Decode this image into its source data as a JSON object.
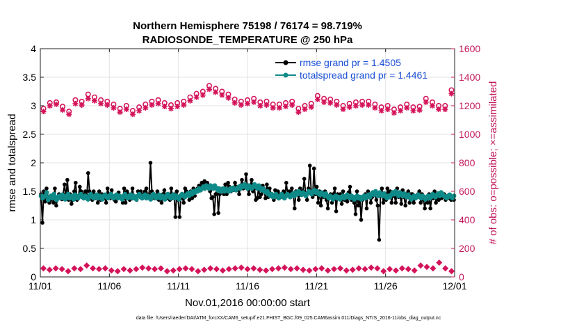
{
  "chart_data": {
    "type": "line",
    "title_lines": [
      "Northern Hemisphere 75198 / 76174 = 98.719%",
      "RADIOSONDE_TEMPERATURE @ 250 hPa"
    ],
    "xlabel": "Nov.01,2016 00:00:00 start",
    "ylabel_left": "rmse and totalspread",
    "ylabel_right": "# of obs: o=possible; ×=assimilated",
    "footer": "data file: /Users/raeder/DAI/ATM_forcXX/CAM6_setup/f.e21.FHIST_BGC.f09_025.CAM6assim.011/Diags_NTrS_2016-11/obs_diag_output.nc",
    "xlim": [
      0,
      30
    ],
    "x_ticks": [
      0,
      5,
      10,
      15,
      20,
      25,
      30
    ],
    "x_tick_labels": [
      "11/01",
      "11/06",
      "11/11",
      "11/16",
      "11/21",
      "11/26",
      "12/01"
    ],
    "ylim_left": [
      0,
      4
    ],
    "y_ticks_left": [
      "0",
      "0.5",
      "1",
      "1.5",
      "2",
      "2.5",
      "3",
      "3.5",
      "4"
    ],
    "ylim_right": [
      0,
      1600
    ],
    "y_ticks_right": [
      "0",
      "200",
      "400",
      "600",
      "800",
      "1000",
      "1200",
      "1400",
      "1600"
    ],
    "colors": {
      "rmse": "#000000",
      "spread": "#0e8a88",
      "obs": "#d4145a",
      "right_axis": "#c2185b"
    },
    "legend": [
      {
        "label": "rmse grand pr = 1.4505",
        "series": "rmse"
      },
      {
        "label": "totalspread grand pr = 1.4461",
        "series": "spread"
      }
    ],
    "series": [
      {
        "name": "rmse",
        "axis": "left",
        "values": [
          1.45,
          0.95,
          1.5,
          1.32,
          1.55,
          1.4,
          1.3,
          1.35,
          1.42,
          1.3,
          1.55,
          1.25,
          1.38,
          1.45,
          1.38,
          1.36,
          1.45,
          1.62,
          1.38,
          1.7,
          1.35,
          1.45,
          1.28,
          1.35,
          1.5,
          1.65,
          1.35,
          1.42,
          1.58,
          1.5,
          1.4,
          1.45,
          1.5,
          1.38,
          1.82,
          1.5,
          1.4,
          1.35,
          1.5,
          1.38,
          1.42,
          1.3,
          1.5,
          1.35,
          1.45,
          1.4,
          1.38,
          1.3,
          1.55,
          1.45,
          1.38,
          1.52,
          1.4,
          1.35,
          1.32,
          1.42,
          1.48,
          1.4,
          1.4,
          1.3,
          1.55,
          1.3,
          1.5,
          1.45,
          1.35,
          1.42,
          1.55,
          1.38,
          1.4,
          1.35,
          1.5,
          1.42,
          1.5,
          1.38,
          1.45,
          1.5,
          1.55,
          1.4,
          1.45,
          2.0,
          1.5,
          1.45,
          1.38,
          1.42,
          1.5,
          1.35,
          1.42,
          1.3,
          1.45,
          1.52,
          1.4,
          1.38,
          1.45,
          1.35,
          1.55,
          1.38,
          1.45,
          1.05,
          1.5,
          1.35,
          1.05,
          1.42,
          1.38,
          1.3,
          1.55,
          1.5,
          1.45,
          1.35,
          1.5,
          1.38,
          1.55,
          1.42,
          1.5,
          1.55,
          1.6,
          1.58,
          1.65,
          1.65,
          1.68,
          1.65,
          1.65,
          1.55,
          1.5,
          1.38,
          1.4,
          1.1,
          1.45,
          1.55,
          1.12,
          1.45,
          1.52,
          1.55,
          1.45,
          1.62,
          1.45,
          1.65,
          1.58,
          1.5,
          1.55,
          1.52,
          1.65,
          1.58,
          1.55,
          1.45,
          1.6,
          1.7,
          1.55,
          1.6,
          1.8,
          1.55,
          1.45,
          1.6,
          1.7,
          1.5,
          1.55,
          1.35,
          1.38,
          1.55,
          1.4,
          1.45,
          1.6,
          1.5,
          1.38,
          1.62,
          1.4,
          1.55,
          1.45,
          1.42,
          1.35,
          1.52,
          1.4,
          1.5,
          1.45,
          1.4,
          1.45,
          1.5,
          1.4,
          1.65,
          1.45,
          1.5,
          1.4,
          1.55,
          1.45,
          1.2,
          1.5,
          1.45,
          1.35,
          1.55,
          1.5,
          1.5,
          1.72,
          1.45,
          1.35,
          1.55,
          1.95,
          1.5,
          1.4,
          1.9,
          1.45,
          1.58,
          1.3,
          1.5,
          1.25,
          1.45,
          1.4,
          1.5,
          1.35,
          1.2,
          1.42,
          1.45,
          1.3,
          1.45,
          1.55,
          1.15,
          1.45,
          1.4,
          1.45,
          1.28,
          1.5,
          1.35,
          1.4,
          1.32,
          1.48,
          1.58,
          1.35,
          1.4,
          1.3,
          1.1,
          1.5,
          1.25,
          1.4,
          1.0,
          1.35,
          1.38,
          1.45,
          1.2,
          1.5,
          1.42,
          1.3,
          1.4,
          1.45,
          1.45,
          1.35,
          1.25,
          0.65,
          1.45,
          1.55,
          1.3,
          1.45,
          1.35,
          1.55,
          1.45,
          1.5,
          1.3,
          1.45,
          1.42,
          1.3,
          1.55,
          1.4,
          1.45,
          1.28,
          1.52,
          1.4,
          1.25,
          1.45,
          1.5,
          1.3,
          1.45,
          1.45,
          1.3,
          1.38,
          1.42,
          1.45,
          1.5,
          1.3,
          1.45,
          1.35,
          1.2,
          1.4,
          1.3,
          1.45,
          1.2,
          1.4,
          1.38,
          1.5,
          1.3,
          1.45,
          1.35,
          1.4,
          1.38,
          1.4,
          1.45,
          1.35,
          1.4,
          1.38,
          1.4,
          1.35,
          1.4,
          1.35
        ]
      },
      {
        "name": "totalspread",
        "axis": "left",
        "values": [
          1.42,
          1.38,
          1.4,
          1.42,
          1.48,
          1.35,
          1.4,
          1.42,
          1.38,
          1.45,
          1.4,
          1.35,
          1.4,
          1.42,
          1.38,
          1.44,
          1.4,
          1.36,
          1.42,
          1.45,
          1.38,
          1.4,
          1.42,
          1.36,
          1.44,
          1.4,
          1.38,
          1.42,
          1.45,
          1.4,
          1.38,
          1.42,
          1.4,
          1.36,
          1.42,
          1.45,
          1.4,
          1.38,
          1.42,
          1.44,
          1.38,
          1.42,
          1.4,
          1.36,
          1.42,
          1.44,
          1.4,
          1.38,
          1.42,
          1.45,
          1.4,
          1.38,
          1.42,
          1.44,
          1.38,
          1.42,
          1.4,
          1.36,
          1.42,
          1.45,
          1.4,
          1.38,
          1.42,
          1.44,
          1.38,
          1.42,
          1.4,
          1.36,
          1.42,
          1.45,
          1.4,
          1.38,
          1.42,
          1.44,
          1.38,
          1.42,
          1.4,
          1.36,
          1.42,
          1.45,
          1.4,
          1.38,
          1.42,
          1.44,
          1.38,
          1.42,
          1.4,
          1.36,
          1.42,
          1.45,
          1.4,
          1.38,
          1.42,
          1.44,
          1.38,
          1.42,
          1.4,
          1.36,
          1.42,
          1.45,
          1.42,
          1.4,
          1.44,
          1.46,
          1.42,
          1.48,
          1.45,
          1.5,
          1.48,
          1.52,
          1.5,
          1.55,
          1.52,
          1.55,
          1.58,
          1.55,
          1.6,
          1.58,
          1.55,
          1.6,
          1.58,
          1.55,
          1.6,
          1.56,
          1.52,
          1.55,
          1.5,
          1.52,
          1.55,
          1.5,
          1.54,
          1.52,
          1.5,
          1.55,
          1.52,
          1.56,
          1.54,
          1.52,
          1.56,
          1.58,
          1.55,
          1.6,
          1.58,
          1.62,
          1.58,
          1.55,
          1.6,
          1.58,
          1.55,
          1.58,
          1.62,
          1.58,
          1.55,
          1.6,
          1.56,
          1.52,
          1.55,
          1.5,
          1.48,
          1.5,
          1.45,
          1.42,
          1.45,
          1.4,
          1.42,
          1.45,
          1.4,
          1.38,
          1.42,
          1.45,
          1.4,
          1.38,
          1.42,
          1.45,
          1.42,
          1.4,
          1.44,
          1.46,
          1.42,
          1.48,
          1.45,
          1.5,
          1.46,
          1.44,
          1.48,
          1.45,
          1.42,
          1.46,
          1.5,
          1.48,
          1.45,
          1.5,
          1.52,
          1.48,
          1.5,
          1.46,
          1.44,
          1.48,
          1.45,
          1.42,
          1.46,
          1.42,
          1.38,
          1.42,
          1.4,
          1.36,
          1.4,
          1.42,
          1.38,
          1.4,
          1.36,
          1.4,
          1.42,
          1.38,
          1.4,
          1.44,
          1.4,
          1.38,
          1.42,
          1.4,
          1.36,
          1.4,
          1.42,
          1.38,
          1.4,
          1.36,
          1.4,
          1.42,
          1.38,
          1.42,
          1.44,
          1.4,
          1.45,
          1.48,
          1.44,
          1.5,
          1.46,
          1.42,
          1.48,
          1.45,
          1.42,
          1.46,
          1.42,
          1.38,
          1.42,
          1.4,
          1.44,
          1.48,
          1.45,
          1.5,
          1.46,
          1.42,
          1.48,
          1.45,
          1.42,
          1.46,
          1.42,
          1.4,
          1.44,
          1.4,
          1.36,
          1.4,
          1.42,
          1.38,
          1.4,
          1.44,
          1.4,
          1.38,
          1.42,
          1.4,
          1.36,
          1.4,
          1.42,
          1.38,
          1.4,
          1.45,
          1.42,
          1.4,
          1.44,
          1.46,
          1.42,
          1.48,
          1.45,
          1.42,
          1.4,
          1.38,
          1.42,
          1.44,
          1.4,
          1.38,
          1.42
        ]
      },
      {
        "name": "obs_possible",
        "axis": "right",
        "values": [
          1180,
          1220,
          1225,
          1195,
          1160,
          1240,
          1230,
          1280,
          1260,
          1240,
          1230,
          1210,
          1180,
          1200,
          1165,
          1190,
          1210,
          1230,
          1240,
          1220,
          1205,
          1220,
          1230,
          1260,
          1285,
          1300,
          1340,
          1320,
          1300,
          1280,
          1245,
          1230,
          1240,
          1250,
          1225,
          1230,
          1210,
          1210,
          1220,
          1230,
          1180,
          1200,
          1215,
          1270,
          1250,
          1245,
          1230,
          1200,
          1215,
          1225,
          1230,
          1230,
          1210,
          1190,
          1200,
          1175,
          1190,
          1210,
          1190,
          1195,
          1250,
          1225,
          1200,
          1200,
          1310
        ]
      },
      {
        "name": "obs_assimilated",
        "axis": "right",
        "values": [
          1160,
          1200,
          1210,
          1170,
          1140,
          1215,
          1205,
          1250,
          1235,
          1215,
          1205,
          1185,
          1155,
          1175,
          1140,
          1165,
          1185,
          1205,
          1215,
          1195,
          1180,
          1195,
          1205,
          1235,
          1260,
          1275,
          1315,
          1295,
          1275,
          1255,
          1220,
          1205,
          1215,
          1225,
          1200,
          1205,
          1185,
          1185,
          1195,
          1205,
          1155,
          1175,
          1190,
          1245,
          1225,
          1220,
          1205,
          1175,
          1190,
          1200,
          1205,
          1205,
          1185,
          1165,
          1175,
          1150,
          1165,
          1185,
          1165,
          1170,
          1225,
          1200,
          1175,
          1175,
          1285
        ]
      },
      {
        "name": "obs_bottom",
        "axis": "right",
        "values": [
          60,
          50,
          60,
          55,
          40,
          60,
          55,
          80,
          60,
          55,
          60,
          45,
          40,
          55,
          45,
          55,
          65,
          60,
          55,
          60,
          40,
          45,
          55,
          60,
          55,
          40,
          50,
          60,
          55,
          45,
          55,
          60,
          65,
          55,
          60,
          50,
          45,
          55,
          60,
          65,
          55,
          60,
          50,
          45,
          55,
          60,
          45,
          55,
          60,
          45,
          50,
          60,
          55,
          65,
          60,
          40,
          55,
          45,
          60,
          55,
          45,
          80,
          70,
          60,
          100,
          60,
          40
        ]
      }
    ]
  }
}
